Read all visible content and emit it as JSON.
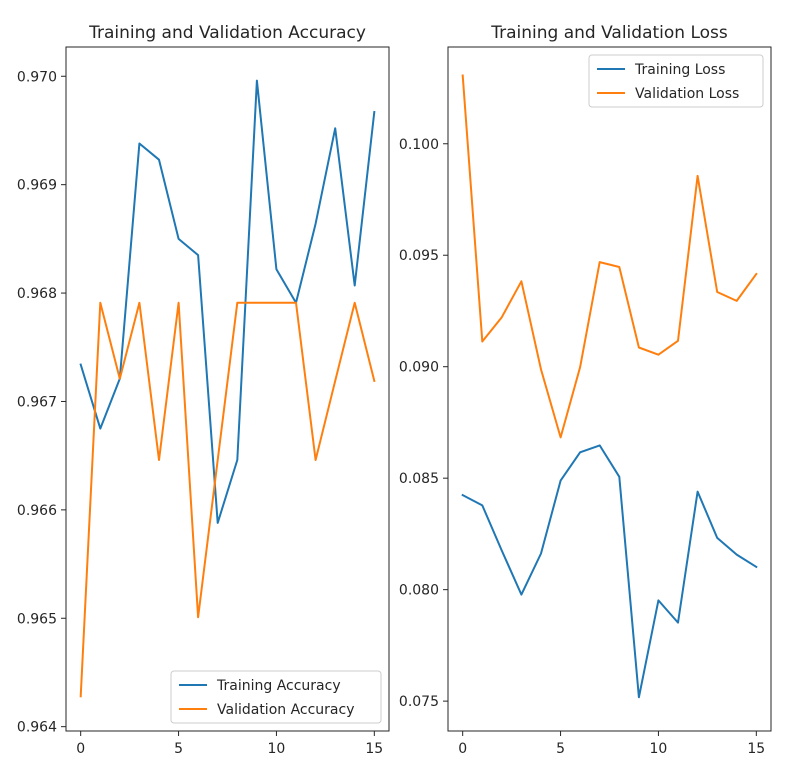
{
  "charts": [
    {
      "type": "line",
      "title": "Training and Validation Accuracy",
      "xlabel": "",
      "ylabel": "",
      "x": [
        0,
        1,
        2,
        3,
        4,
        5,
        6,
        7,
        8,
        9,
        10,
        11,
        12,
        13,
        14,
        15
      ],
      "xlim": [
        -0.75,
        15.75
      ],
      "ylim": [
        0.96396,
        0.97027
      ],
      "xticks": [
        0,
        5,
        10,
        15
      ],
      "yticks": [
        0.964,
        0.965,
        0.966,
        0.967,
        0.968,
        0.969,
        0.97
      ],
      "ytick_labels": [
        "0.964",
        "0.965",
        "0.966",
        "0.967",
        "0.968",
        "0.969",
        "0.970"
      ],
      "grid": false,
      "legend": "bottom-right",
      "series": [
        {
          "name": "Training Accuracy",
          "color": "#1f77b4",
          "values": [
            0.96734,
            0.96675,
            0.96721,
            0.96938,
            0.96923,
            0.9685,
            0.96835,
            0.96588,
            0.96646,
            0.96996,
            0.96822,
            0.96791,
            0.96864,
            0.96952,
            0.96807,
            0.96967
          ]
        },
        {
          "name": "Validation Accuracy",
          "color": "#ff7f0e",
          "values": [
            0.96428,
            0.96791,
            0.96721,
            0.96791,
            0.96646,
            0.96791,
            0.96501,
            0.96646,
            0.96791,
            0.96791,
            0.96791,
            0.96791,
            0.96646,
            0.96719,
            0.96791,
            0.96719
          ]
        }
      ]
    },
    {
      "type": "line",
      "title": "Training and Validation Loss",
      "xlabel": "",
      "ylabel": "",
      "x": [
        0,
        1,
        2,
        3,
        4,
        5,
        6,
        7,
        8,
        9,
        10,
        11,
        12,
        13,
        14,
        15
      ],
      "xlim": [
        -0.75,
        15.75
      ],
      "ylim": [
        0.07366,
        0.10434
      ],
      "xticks": [
        0,
        5,
        10,
        15
      ],
      "yticks": [
        0.075,
        0.08,
        0.085,
        0.09,
        0.095,
        0.1
      ],
      "ytick_labels": [
        "0.075",
        "0.080",
        "0.085",
        "0.090",
        "0.095",
        "0.100"
      ],
      "grid": false,
      "legend": "top-right",
      "series": [
        {
          "name": "Training Loss",
          "color": "#1f77b4",
          "values": [
            0.08424,
            0.08378,
            0.08175,
            0.07978,
            0.08162,
            0.08489,
            0.08616,
            0.08647,
            0.08506,
            0.07517,
            0.07952,
            0.07852,
            0.0844,
            0.08232,
            0.08157,
            0.08102
          ]
        },
        {
          "name": "Validation Loss",
          "color": "#ff7f0e",
          "values": [
            0.10306,
            0.09113,
            0.09222,
            0.09383,
            0.08988,
            0.08683,
            0.08998,
            0.09469,
            0.09447,
            0.09086,
            0.09054,
            0.09116,
            0.09856,
            0.09335,
            0.09295,
            0.09416
          ]
        }
      ]
    }
  ]
}
